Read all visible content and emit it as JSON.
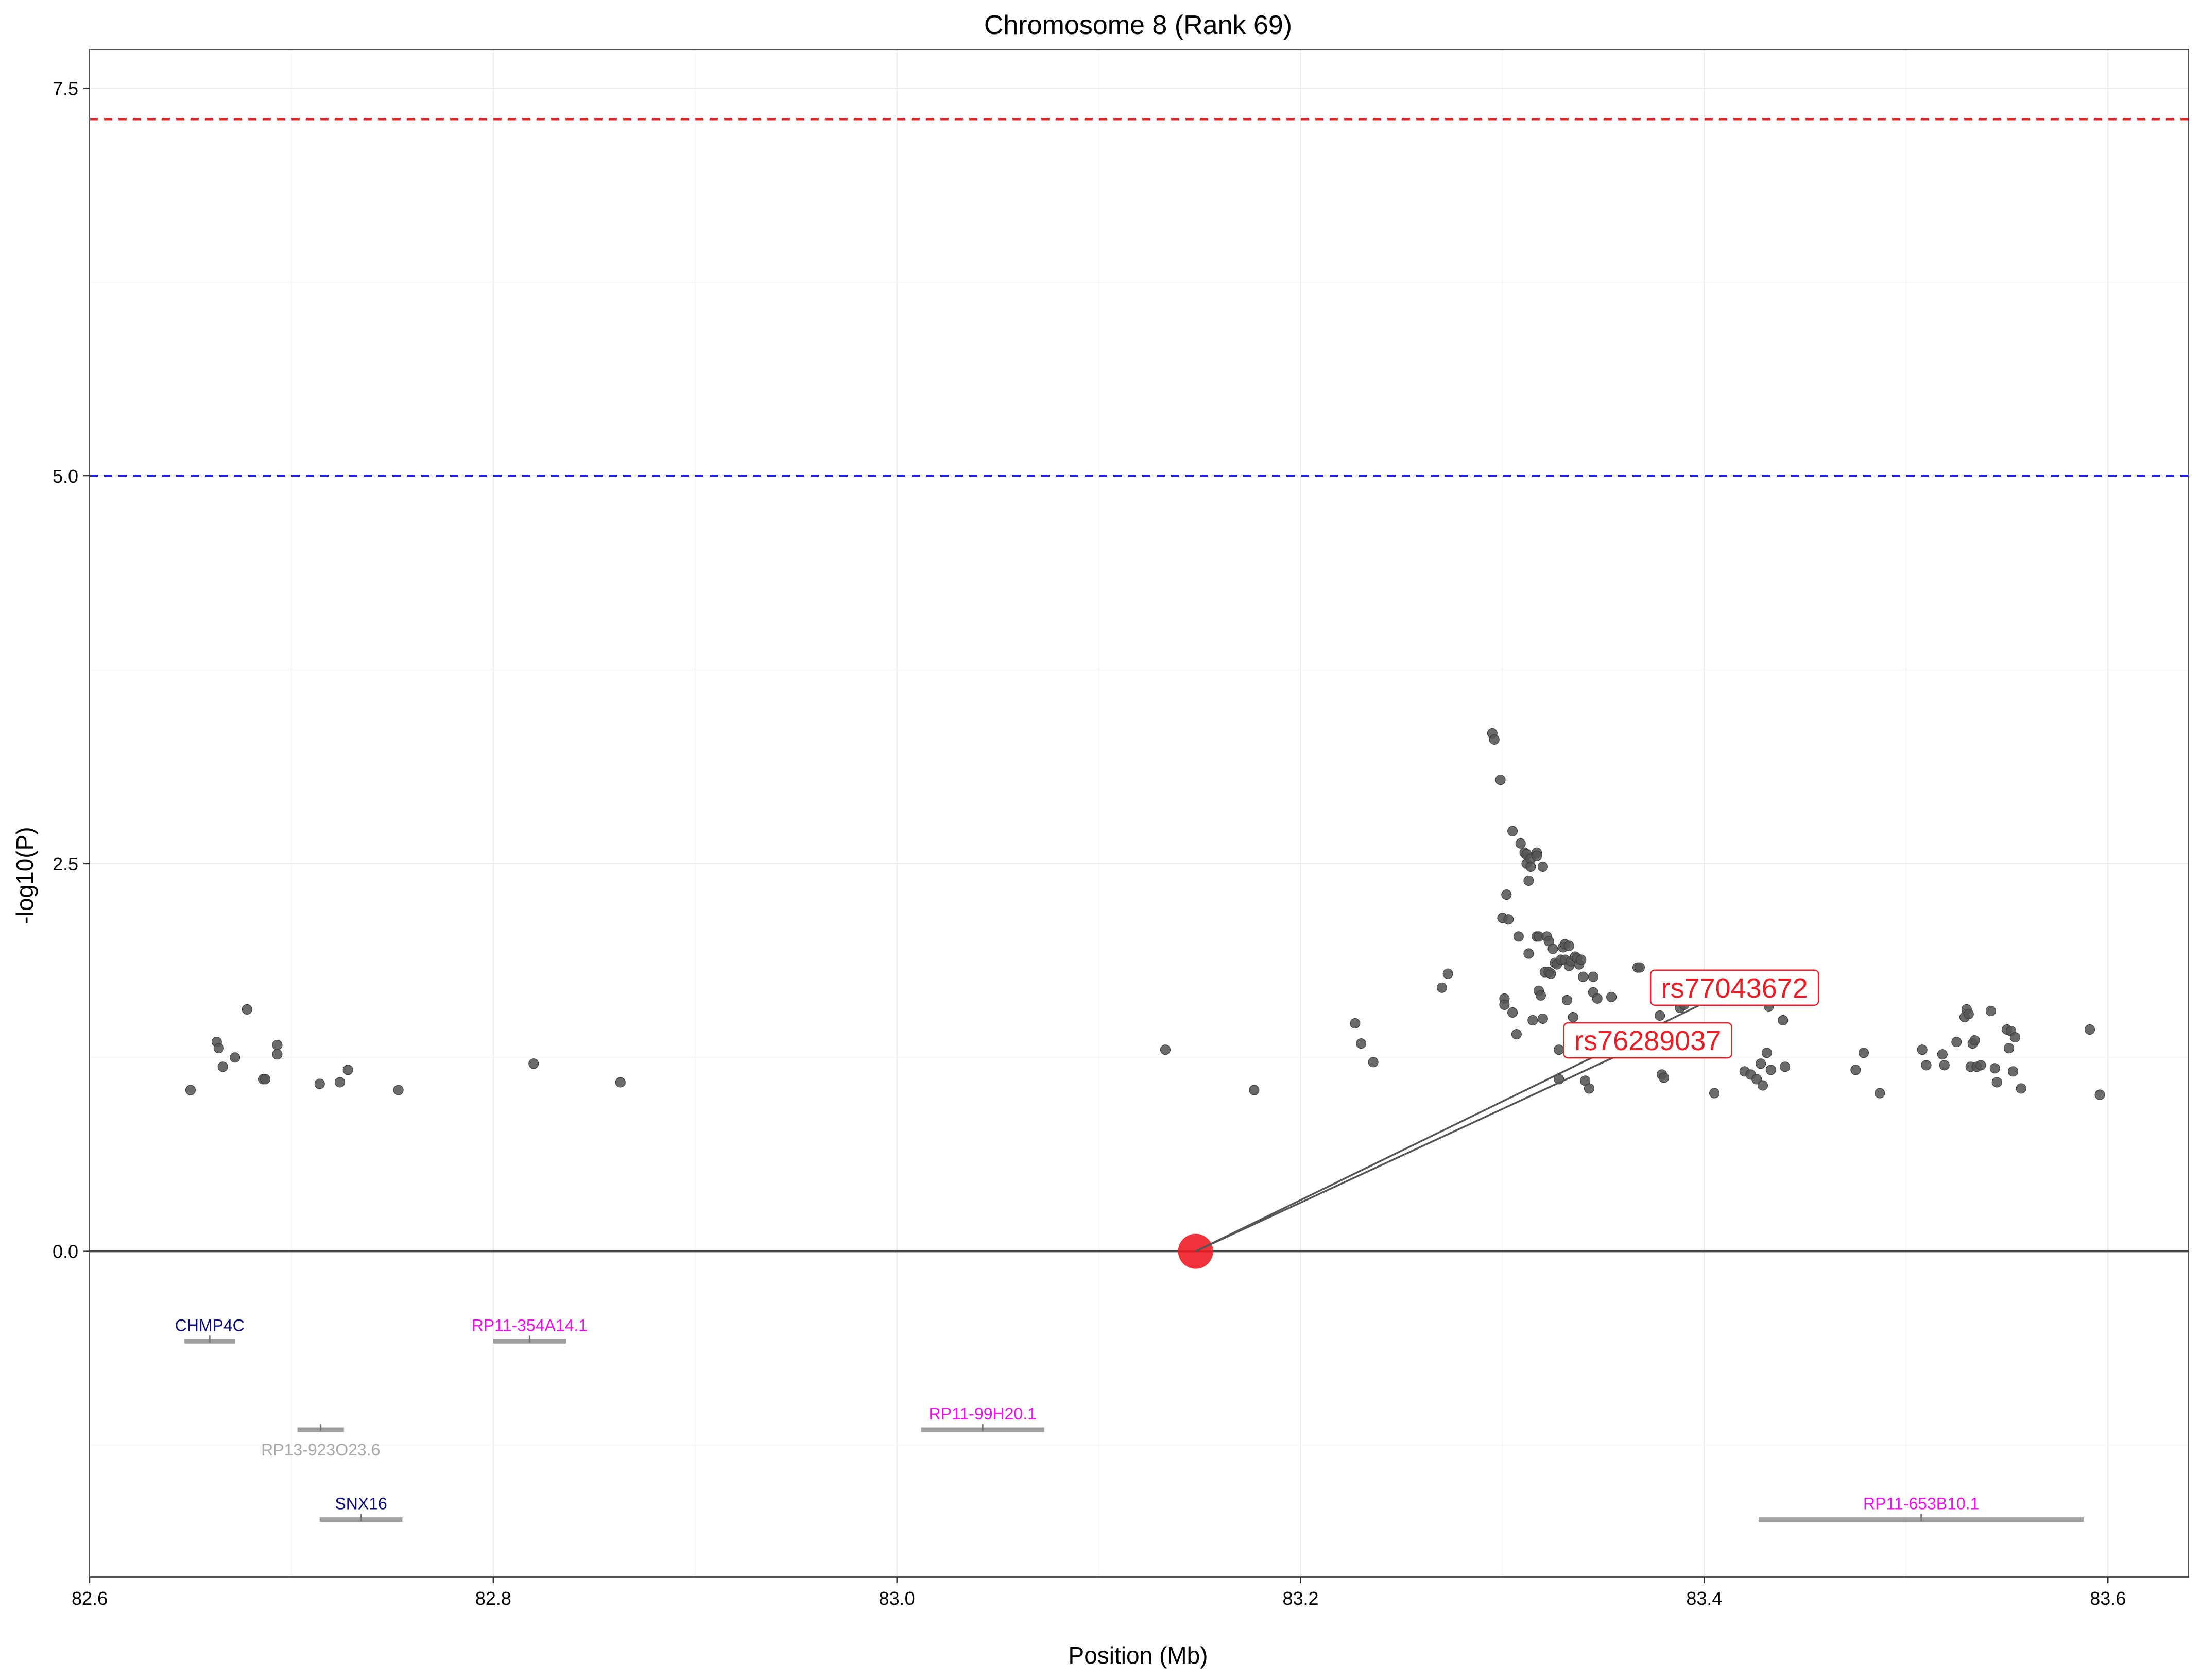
{
  "chart_data": {
    "type": "scatter",
    "title": "Chromosome 8 (Rank 69)",
    "xlabel": "Position (Mb)",
    "ylabel": "-log10(P)",
    "xlim": [
      82.6,
      83.64
    ],
    "ylim": [
      -2.1,
      7.75
    ],
    "xticks": [
      82.6,
      82.8,
      83.0,
      83.2,
      83.4,
      83.6
    ],
    "xtick_labels": [
      "82.6",
      "82.8",
      "83.0",
      "83.2",
      "83.4",
      "83.6"
    ],
    "yticks": [
      0,
      2.5,
      5,
      7.5
    ],
    "ytick_labels": [
      "0.0",
      "2.5",
      "5.0",
      "7.5"
    ],
    "grid": true,
    "thresholds": [
      {
        "value": 7.3,
        "color": "#ee1c25",
        "style": "dashed"
      },
      {
        "value": 5.0,
        "color": "#1f1fe6",
        "style": "dashed"
      }
    ],
    "baseline": 0,
    "point_color": "#555555",
    "points": [
      [
        82.65,
        1.04
      ],
      [
        82.663,
        1.35
      ],
      [
        82.664,
        1.31
      ],
      [
        82.666,
        1.19
      ],
      [
        82.672,
        1.25
      ],
      [
        82.678,
        1.56
      ],
      [
        82.686,
        1.11
      ],
      [
        82.687,
        1.11
      ],
      [
        82.693,
        1.33
      ],
      [
        82.693,
        1.27
      ],
      [
        82.714,
        1.08
      ],
      [
        82.724,
        1.09
      ],
      [
        82.728,
        1.17
      ],
      [
        82.753,
        1.04
      ],
      [
        82.82,
        1.21
      ],
      [
        82.863,
        1.09
      ],
      [
        83.133,
        1.3
      ],
      [
        83.177,
        1.04
      ],
      [
        83.227,
        1.47
      ],
      [
        83.23,
        1.34
      ],
      [
        83.236,
        1.22
      ],
      [
        83.27,
        1.7
      ],
      [
        83.273,
        1.79
      ],
      [
        83.295,
        3.34
      ],
      [
        83.296,
        3.3
      ],
      [
        83.299,
        3.04
      ],
      [
        83.3,
        2.15
      ],
      [
        83.301,
        1.63
      ],
      [
        83.301,
        1.59
      ],
      [
        83.302,
        2.3
      ],
      [
        83.303,
        2.14
      ],
      [
        83.305,
        2.71
      ],
      [
        83.305,
        1.54
      ],
      [
        83.307,
        1.4
      ],
      [
        83.308,
        2.03
      ],
      [
        83.309,
        2.63
      ],
      [
        83.311,
        2.57
      ],
      [
        83.312,
        2.56
      ],
      [
        83.312,
        2.5
      ],
      [
        83.313,
        2.39
      ],
      [
        83.313,
        1.92
      ],
      [
        83.314,
        2.53
      ],
      [
        83.314,
        2.48
      ],
      [
        83.315,
        1.49
      ],
      [
        83.317,
        2.57
      ],
      [
        83.317,
        2.55
      ],
      [
        83.317,
        2.03
      ],
      [
        83.318,
        2.03
      ],
      [
        83.318,
        1.68
      ],
      [
        83.319,
        1.65
      ],
      [
        83.32,
        2.48
      ],
      [
        83.32,
        1.5
      ],
      [
        83.321,
        1.8
      ],
      [
        83.322,
        2.03
      ],
      [
        83.323,
        1.8
      ],
      [
        83.323,
        2.0
      ],
      [
        83.324,
        1.79
      ],
      [
        83.325,
        1.95
      ],
      [
        83.326,
        1.86
      ],
      [
        83.327,
        1.85
      ],
      [
        83.328,
        1.3
      ],
      [
        83.328,
        1.11
      ],
      [
        83.329,
        1.88
      ],
      [
        83.33,
        1.96
      ],
      [
        83.331,
        1.98
      ],
      [
        83.331,
        1.88
      ],
      [
        83.332,
        1.62
      ],
      [
        83.333,
        1.97
      ],
      [
        83.333,
        1.84
      ],
      [
        83.334,
        1.87
      ],
      [
        83.335,
        1.51
      ],
      [
        83.335,
        1.3
      ],
      [
        83.336,
        1.9
      ],
      [
        83.337,
        1.89
      ],
      [
        83.338,
        1.85
      ],
      [
        83.339,
        1.88
      ],
      [
        83.34,
        1.77
      ],
      [
        83.341,
        1.1
      ],
      [
        83.343,
        1.05
      ],
      [
        83.345,
        1.77
      ],
      [
        83.345,
        1.67
      ],
      [
        83.347,
        1.63
      ],
      [
        83.354,
        1.64
      ],
      [
        83.367,
        1.83
      ],
      [
        83.368,
        1.83
      ],
      [
        83.369,
        1.36
      ],
      [
        83.378,
        1.52
      ],
      [
        83.379,
        1.14
      ],
      [
        83.38,
        1.12
      ],
      [
        83.388,
        1.57
      ],
      [
        83.39,
        1.59
      ],
      [
        83.405,
        1.02
      ],
      [
        83.42,
        1.16
      ],
      [
        83.423,
        1.14
      ],
      [
        83.426,
        1.11
      ],
      [
        83.428,
        1.21
      ],
      [
        83.429,
        1.07
      ],
      [
        83.431,
        1.28
      ],
      [
        83.432,
        1.58
      ],
      [
        83.433,
        1.17
      ],
      [
        83.439,
        1.49
      ],
      [
        83.44,
        1.19
      ],
      [
        83.475,
        1.17
      ],
      [
        83.479,
        1.28
      ],
      [
        83.487,
        1.02
      ],
      [
        83.508,
        1.3
      ],
      [
        83.51,
        1.2
      ],
      [
        83.518,
        1.27
      ],
      [
        83.519,
        1.2
      ],
      [
        83.525,
        1.35
      ],
      [
        83.529,
        1.51
      ],
      [
        83.53,
        1.56
      ],
      [
        83.531,
        1.53
      ],
      [
        83.532,
        1.19
      ],
      [
        83.533,
        1.34
      ],
      [
        83.534,
        1.36
      ],
      [
        83.535,
        1.19
      ],
      [
        83.537,
        1.2
      ],
      [
        83.542,
        1.55
      ],
      [
        83.544,
        1.18
      ],
      [
        83.545,
        1.09
      ],
      [
        83.55,
        1.43
      ],
      [
        83.551,
        1.31
      ],
      [
        83.552,
        1.42
      ],
      [
        83.553,
        1.16
      ],
      [
        83.554,
        1.38
      ],
      [
        83.557,
        1.05
      ],
      [
        83.591,
        1.43
      ],
      [
        83.596,
        1.01
      ]
    ],
    "index_snp": {
      "x": 83.148,
      "y": 0,
      "color": "#ee1c25"
    },
    "annotations": [
      {
        "label": "rs77043672",
        "x": 83.415,
        "y": 1.7
      },
      {
        "label": "rs76289037",
        "x": 83.372,
        "y": 1.36
      }
    ],
    "genes": [
      {
        "name": "CHMP4C",
        "start": 82.647,
        "end": 82.672,
        "y": -0.58,
        "color": "#0b0b7a",
        "label_side": "above"
      },
      {
        "name": "RP11-354A14.1",
        "start": 82.8,
        "end": 82.836,
        "y": -0.58,
        "color": "#ee10ee",
        "label_side": "above"
      },
      {
        "name": "RP13-923O23.6",
        "start": 82.703,
        "end": 82.726,
        "y": -1.15,
        "color": "#aaaaaa",
        "label_side": "below"
      },
      {
        "name": "RP11-99H20.1",
        "start": 83.012,
        "end": 83.073,
        "y": -1.15,
        "color": "#ee10ee",
        "label_side": "above"
      },
      {
        "name": "SNX16",
        "start": 82.714,
        "end": 82.755,
        "y": -1.73,
        "color": "#0b0b7a",
        "label_side": "above"
      },
      {
        "name": "RP11-653B10.1",
        "start": 83.427,
        "end": 83.588,
        "y": -1.73,
        "color": "#ee10ee",
        "label_side": "above"
      }
    ]
  }
}
